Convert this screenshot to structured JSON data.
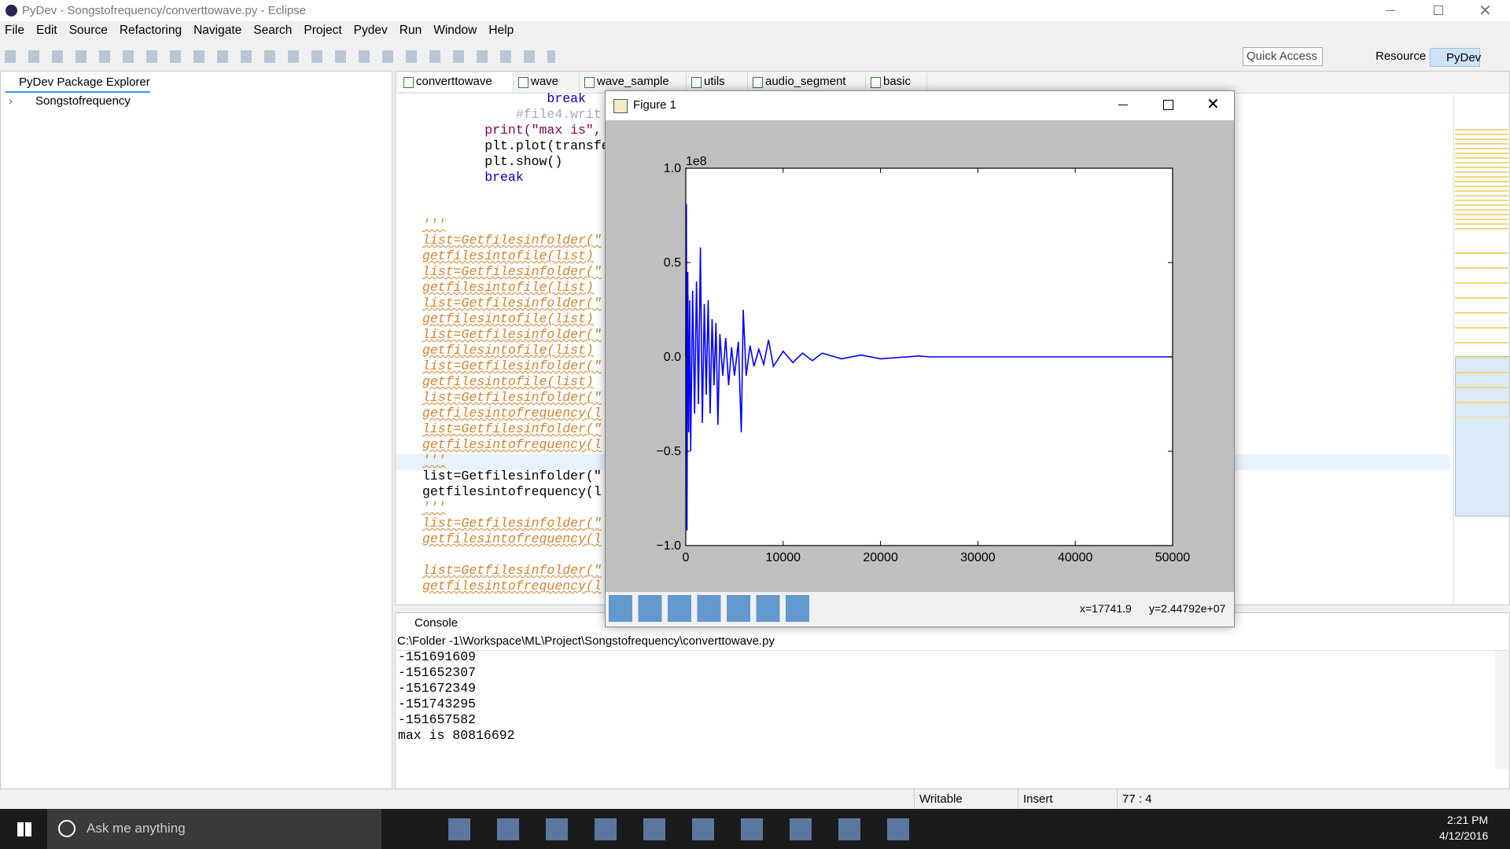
{
  "window_title": "PyDev - Songstofrequency/converttowave.py - Eclipse",
  "menu": [
    "File",
    "Edit",
    "Source",
    "Refactoring",
    "Navigate",
    "Search",
    "Project",
    "Pydev",
    "Run",
    "Window",
    "Help"
  ],
  "toolbar": {
    "quick_access": "Quick Access",
    "perspectives": [
      "Resource",
      "PyDev"
    ]
  },
  "explorer": {
    "title": "PyDev Package Explorer",
    "items": [
      "Songstofrequency"
    ]
  },
  "editor": {
    "tabs": [
      "converttowave",
      "wave",
      "wave_sample",
      "utils",
      "audio_segment",
      "basic"
    ],
    "lines": [
      "                break",
      "            #file4.writ",
      "        print(\"max is\",",
      "        plt.plot(transfe",
      "        plt.show()",
      "        break",
      "'''",
      "list=Getfilesinfolder(\"",
      "getfilesintofile(list)",
      "list=Getfilesinfolder(\"",
      "getfilesintofile(list)",
      "list=Getfilesinfolder(\"",
      "getfilesintofile(list)",
      "list=Getfilesinfolder(\"",
      "getfilesintofile(list)",
      "list=Getfilesinfolder(\"",
      "getfilesintofile(list)",
      "list=Getfilesinfolder(\"",
      "getfilesintofrequency(l",
      "list=Getfilesinfolder(\"",
      "getfilesintofrequency(l",
      "'''",
      "list=Getfilesinfolder(\"",
      "getfilesintofrequency(l",
      "'''",
      "list=Getfilesinfolder(\"",
      "getfilesintofrequency(l",
      "list=Getfilesinfolder(\"",
      "getfilesintofrequency(l"
    ]
  },
  "console": {
    "title": "Console",
    "path": "C:\\Folder -1\\Workspace\\ML\\Project\\Songstofrequency\\converttowave.py",
    "lines": [
      "-151691609",
      "-151652307",
      "-151672349",
      "-151743295",
      "-151657582",
      "max is 80816692"
    ]
  },
  "status": [
    "Writable",
    "Insert",
    "77 : 4"
  ],
  "figure": {
    "title": "Figure 1",
    "coords_x": "x=17741.9",
    "coords_y": "y=2.44792e+07"
  },
  "taskbar": {
    "search": "Ask me anything",
    "time": "2:21 PM",
    "date": "4/12/2016"
  },
  "chart_data": {
    "type": "line",
    "y_offset_label": "1e8",
    "color": "#0000ff",
    "x": [
      0,
      60,
      120,
      200,
      300,
      400,
      500,
      700,
      900,
      1100,
      1300,
      1500,
      1700,
      1900,
      2100,
      2300,
      2500,
      2700,
      2900,
      3100,
      3300,
      3500,
      3800,
      4100,
      4400,
      4700,
      5000,
      5400,
      5700,
      5900,
      6200,
      6600,
      7000,
      7500,
      8000,
      8500,
      9000,
      10000,
      11000,
      12000,
      13000,
      14000,
      16000,
      18000,
      20000,
      24000,
      25000,
      50000
    ],
    "values": [
      0,
      0.81,
      -0.92,
      0.45,
      -0.4,
      0.3,
      -0.5,
      0.35,
      -0.3,
      0.4,
      -0.25,
      0.58,
      -0.35,
      0.28,
      -0.2,
      0.3,
      -0.3,
      0.2,
      -0.15,
      0.18,
      -0.36,
      0.12,
      -0.1,
      0.1,
      -0.15,
      0.05,
      -0.1,
      0.08,
      -0.4,
      0.25,
      -0.1,
      0.06,
      -0.05,
      0.04,
      -0.04,
      0.09,
      -0.05,
      0.03,
      -0.03,
      0.02,
      -0.02,
      0.02,
      -0.01,
      0.01,
      -0.01,
      0.005,
      0,
      0
    ],
    "xlim": [
      0,
      50000
    ],
    "ylim": [
      -1,
      1
    ],
    "xticks": [
      0,
      10000,
      20000,
      30000,
      40000,
      50000
    ],
    "yticks": [
      {
        "value": -1.0,
        "label": "−1.0"
      },
      {
        "value": -0.5,
        "label": "−0.5"
      },
      {
        "value": 0.0,
        "label": "0.0"
      },
      {
        "value": 0.5,
        "label": "0.5"
      },
      {
        "value": 1.0,
        "label": "1.0"
      }
    ]
  }
}
